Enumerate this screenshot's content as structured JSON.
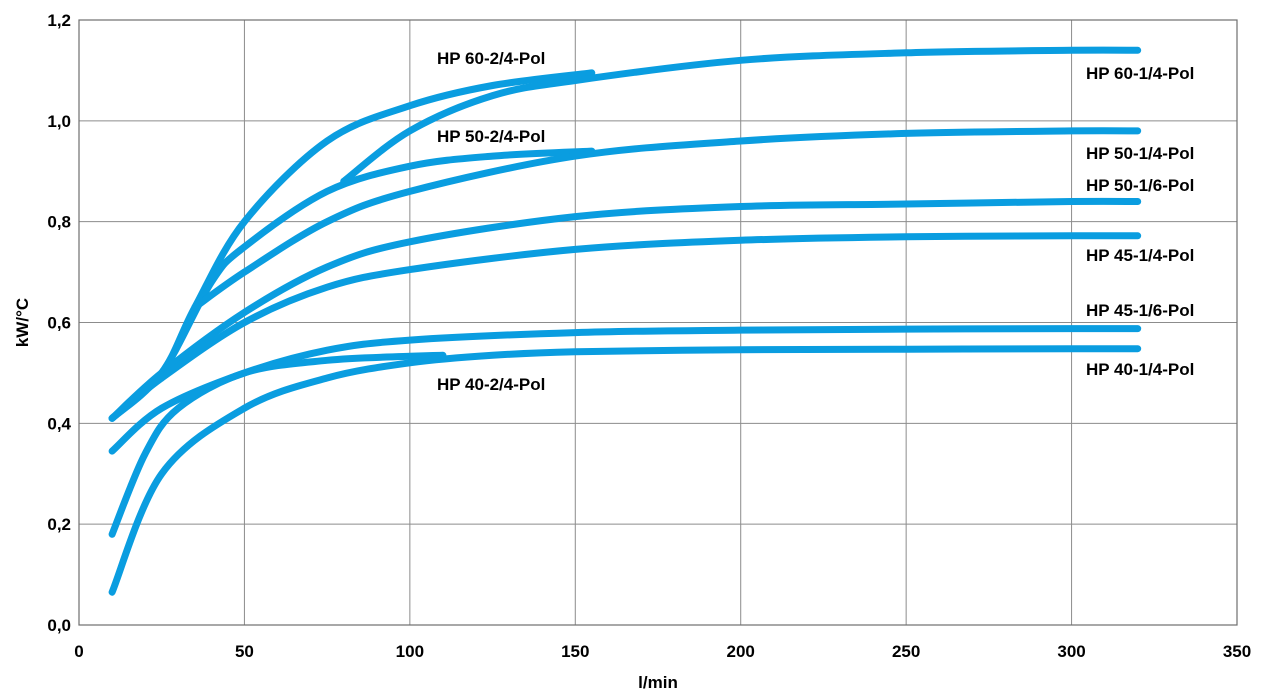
{
  "chart_data": {
    "type": "line",
    "title": "",
    "xlabel": "l/min",
    "ylabel": "kW/°C",
    "xlim": [
      0,
      350
    ],
    "ylim": [
      0,
      1.2
    ],
    "x_ticks": [
      0,
      50,
      100,
      150,
      200,
      250,
      300,
      350
    ],
    "y_ticks": [
      0.0,
      0.2,
      0.4,
      0.6,
      0.8,
      1.0,
      1.2
    ],
    "x_tick_labels": [
      "0",
      "50",
      "100",
      "150",
      "200",
      "250",
      "300",
      "350"
    ],
    "y_tick_labels": [
      "0,0",
      "0,2",
      "0,4",
      "0,6",
      "0,8",
      "1,0",
      "1,2"
    ],
    "grid": true,
    "line_color": "#0a9de0",
    "series": [
      {
        "name": "HP 60-2/4-Pol",
        "x": [
          10,
          25,
          35,
          50,
          75,
          100,
          125,
          155
        ],
        "y": [
          0.41,
          0.5,
          0.63,
          0.8,
          0.96,
          1.03,
          1.07,
          1.095
        ]
      },
      {
        "name": "HP 60-1/4-Pol",
        "x": [
          80,
          100,
          125,
          150,
          200,
          250,
          300,
          320
        ],
        "y": [
          0.88,
          0.98,
          1.05,
          1.08,
          1.12,
          1.135,
          1.14,
          1.14
        ]
      },
      {
        "name": "HP 50-2/4-Pol",
        "x": [
          10,
          25,
          40,
          50,
          75,
          100,
          125,
          155
        ],
        "y": [
          0.41,
          0.5,
          0.68,
          0.75,
          0.86,
          0.91,
          0.93,
          0.94
        ]
      },
      {
        "name": "HP 50-1/4-Pol",
        "x": [
          35,
          50,
          75,
          100,
          150,
          200,
          250,
          300,
          320
        ],
        "y": [
          0.63,
          0.7,
          0.8,
          0.86,
          0.93,
          0.96,
          0.975,
          0.98,
          0.98
        ]
      },
      {
        "name": "HP 50-1/6-Pol",
        "x": [
          10,
          25,
          50,
          75,
          100,
          150,
          200,
          250,
          300,
          320
        ],
        "y": [
          0.41,
          0.5,
          0.62,
          0.71,
          0.76,
          0.81,
          0.83,
          0.835,
          0.84,
          0.84
        ]
      },
      {
        "name": "HP 45-1/4-Pol",
        "x": [
          10,
          25,
          50,
          75,
          100,
          150,
          200,
          250,
          300,
          320
        ],
        "y": [
          0.41,
          0.49,
          0.6,
          0.67,
          0.705,
          0.745,
          0.763,
          0.77,
          0.772,
          0.772
        ]
      },
      {
        "name": "HP 45-1/6-Pol",
        "x": [
          10,
          25,
          50,
          75,
          100,
          150,
          200,
          250,
          300,
          320
        ],
        "y": [
          0.345,
          0.43,
          0.5,
          0.545,
          0.565,
          0.58,
          0.585,
          0.587,
          0.588,
          0.588
        ]
      },
      {
        "name": "HP 40-2/4-Pol",
        "x": [
          10,
          20,
          30,
          50,
          75,
          100,
          110
        ],
        "y": [
          0.18,
          0.34,
          0.43,
          0.5,
          0.525,
          0.533,
          0.535
        ]
      },
      {
        "name": "HP 40-1/4-Pol",
        "x": [
          10,
          25,
          50,
          75,
          100,
          125,
          150,
          200,
          250,
          300,
          320
        ],
        "y": [
          0.065,
          0.3,
          0.43,
          0.49,
          0.52,
          0.535,
          0.542,
          0.546,
          0.547,
          0.548,
          0.548
        ]
      }
    ]
  }
}
